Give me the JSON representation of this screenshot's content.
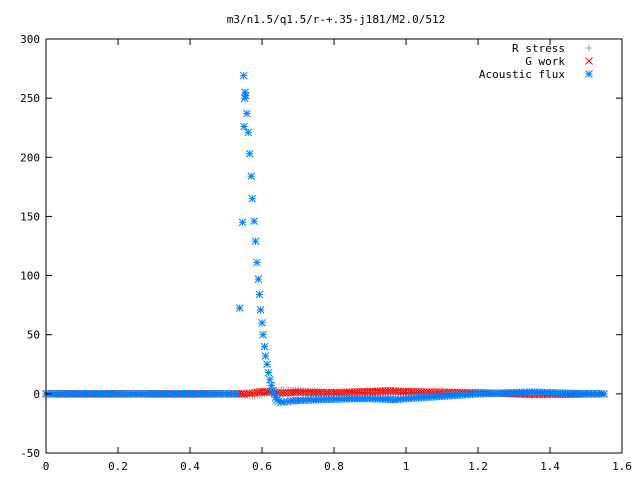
{
  "colors": {
    "r_stress": "#a0a0a0",
    "g_work": "#ff0000",
    "acoustic_flux": "#0080ff",
    "frame": "#000000"
  },
  "chart_data": {
    "type": "scatter",
    "title": "m3/n1.5/q1.5/r-+.35-j181/M2.0/512",
    "xlabel": "",
    "ylabel": "",
    "xlim": [
      0,
      1.6
    ],
    "ylim": [
      -50,
      300
    ],
    "x_ticks": [
      "0",
      "0.2",
      "0.4",
      "0.6",
      "0.8",
      "1",
      "1.2",
      "1.4",
      "1.6"
    ],
    "y_ticks": [
      "300",
      "250",
      "200",
      "150",
      "100",
      "50",
      "0",
      "-50"
    ],
    "grid": false,
    "legend_position": "top-right",
    "series": [
      {
        "name": "R stress",
        "marker": "plus",
        "color": "#a0a0a0",
        "points": [
          [
            0.0,
            0.0
          ],
          [
            0.5,
            0.0
          ],
          [
            0.54,
            0.0
          ],
          [
            0.56,
            -1.0
          ],
          [
            0.58,
            -2.0
          ],
          [
            0.6,
            -1.0
          ],
          [
            0.62,
            2.0
          ],
          [
            0.64,
            3.0
          ],
          [
            0.66,
            3.0
          ],
          [
            0.68,
            3.0
          ],
          [
            0.7,
            3.0
          ],
          [
            0.72,
            2.5
          ],
          [
            0.76,
            2.0
          ],
          [
            0.8,
            1.5
          ],
          [
            0.9,
            1.0
          ],
          [
            1.0,
            0.5
          ],
          [
            1.2,
            0.5
          ],
          [
            1.4,
            0.0
          ],
          [
            1.55,
            0.0
          ]
        ]
      },
      {
        "name": "G work",
        "marker": "cross",
        "color": "#ff0000",
        "points": [
          [
            0.0,
            0.0
          ],
          [
            0.5,
            0.0
          ],
          [
            0.55,
            0.0
          ],
          [
            0.58,
            1.0
          ],
          [
            0.6,
            2.0
          ],
          [
            0.62,
            1.5
          ],
          [
            0.65,
            0.5
          ],
          [
            0.68,
            1.0
          ],
          [
            0.7,
            1.5
          ],
          [
            0.75,
            1.0
          ],
          [
            0.8,
            1.0
          ],
          [
            0.85,
            1.5
          ],
          [
            0.9,
            2.0
          ],
          [
            0.95,
            2.5
          ],
          [
            1.0,
            2.0
          ],
          [
            1.05,
            1.5
          ],
          [
            1.1,
            1.5
          ],
          [
            1.15,
            1.0
          ],
          [
            1.2,
            1.0
          ],
          [
            1.3,
            0.0
          ],
          [
            1.35,
            -0.5
          ],
          [
            1.4,
            -0.5
          ],
          [
            1.45,
            -0.5
          ],
          [
            1.5,
            0.0
          ],
          [
            1.55,
            0.0
          ]
        ]
      },
      {
        "name": "Acoustic flux",
        "marker": "star",
        "color": "#0080ff",
        "points": [
          [
            0.0,
            0.0
          ],
          [
            0.1,
            0.0
          ],
          [
            0.2,
            0.0
          ],
          [
            0.3,
            0.0
          ],
          [
            0.4,
            0.0
          ],
          [
            0.5,
            0.0
          ],
          [
            0.53,
            0.0
          ],
          [
            0.546,
            145
          ],
          [
            0.549,
            269
          ],
          [
            0.55,
            226
          ],
          [
            0.552,
            250
          ],
          [
            0.553,
            255
          ],
          [
            0.555,
            252
          ],
          [
            0.558,
            237
          ],
          [
            0.562,
            221
          ],
          [
            0.566,
            203
          ],
          [
            0.57,
            184
          ],
          [
            0.573,
            165
          ],
          [
            0.578,
            146
          ],
          [
            0.582,
            129
          ],
          [
            0.586,
            111
          ],
          [
            0.59,
            97
          ],
          [
            0.593,
            84
          ],
          [
            0.596,
            71
          ],
          [
            0.6,
            60
          ],
          [
            0.603,
            50
          ],
          [
            0.607,
            40
          ],
          [
            0.61,
            32
          ],
          [
            0.614,
            25
          ],
          [
            0.618,
            18
          ],
          [
            0.622,
            12
          ],
          [
            0.626,
            7
          ],
          [
            0.63,
            3
          ],
          [
            0.634,
            0
          ],
          [
            0.638,
            -3
          ],
          [
            0.642,
            -5
          ],
          [
            0.647,
            -6
          ],
          [
            0.653,
            -7
          ],
          [
            0.66,
            -7
          ],
          [
            0.67,
            -6.5
          ],
          [
            0.68,
            -6
          ],
          [
            0.7,
            -5.5
          ],
          [
            0.75,
            -5
          ],
          [
            0.8,
            -4.5
          ],
          [
            0.85,
            -4
          ],
          [
            0.9,
            -4
          ],
          [
            0.95,
            -4.5
          ],
          [
            0.97,
            -5
          ],
          [
            1.0,
            -4
          ],
          [
            1.05,
            -3
          ],
          [
            1.1,
            -2
          ],
          [
            1.15,
            -1
          ],
          [
            1.2,
            0
          ],
          [
            1.25,
            0.5
          ],
          [
            1.3,
            1
          ],
          [
            1.35,
            1.5
          ],
          [
            1.4,
            1
          ],
          [
            1.45,
            0.5
          ],
          [
            1.5,
            0
          ],
          [
            1.55,
            0
          ]
        ]
      }
    ]
  }
}
